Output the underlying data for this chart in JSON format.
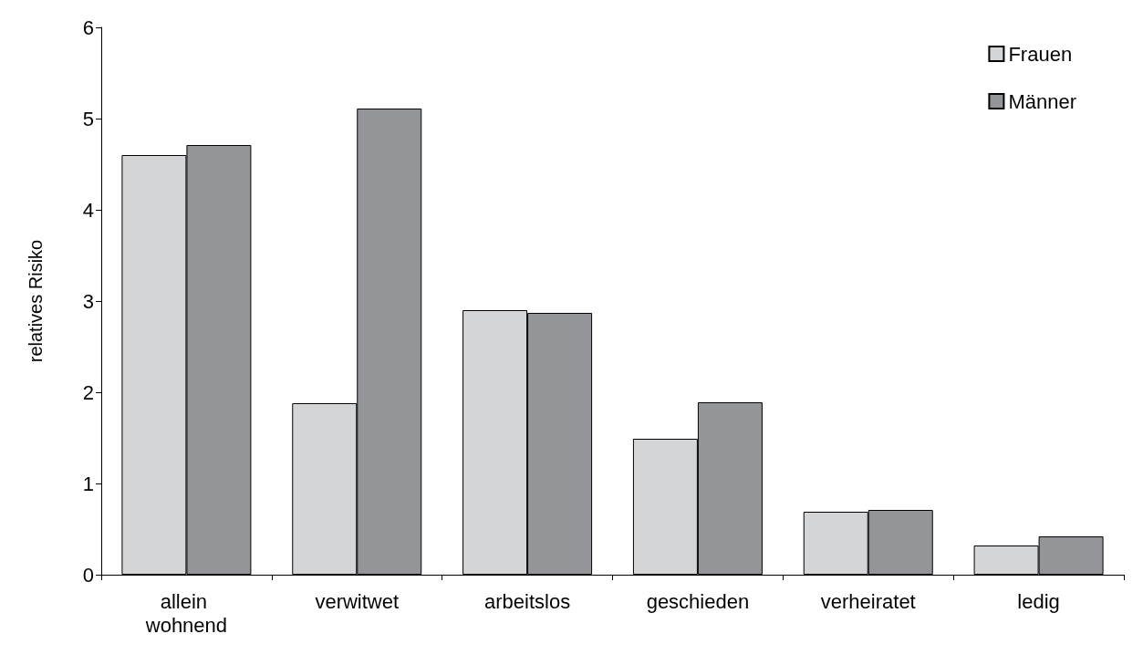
{
  "chart_data": {
    "type": "bar",
    "ylabel": "relatives Risiko",
    "categories": [
      "allein wohnend",
      "verwitwet",
      "arbeitslos",
      "geschieden",
      "verheiratet",
      "ledig"
    ],
    "series": [
      {
        "name": "Frauen",
        "color": "#d4d5d7",
        "values": [
          4.6,
          1.88,
          2.9,
          1.49,
          0.69,
          0.32
        ]
      },
      {
        "name": "Männer",
        "color": "#939598",
        "values": [
          4.71,
          5.11,
          2.87,
          1.89,
          0.71,
          0.42
        ]
      }
    ],
    "ylim": [
      0,
      6
    ],
    "yticks": [
      0,
      1,
      2,
      3,
      4,
      5,
      6
    ],
    "grid": false,
    "legend": "top right"
  }
}
